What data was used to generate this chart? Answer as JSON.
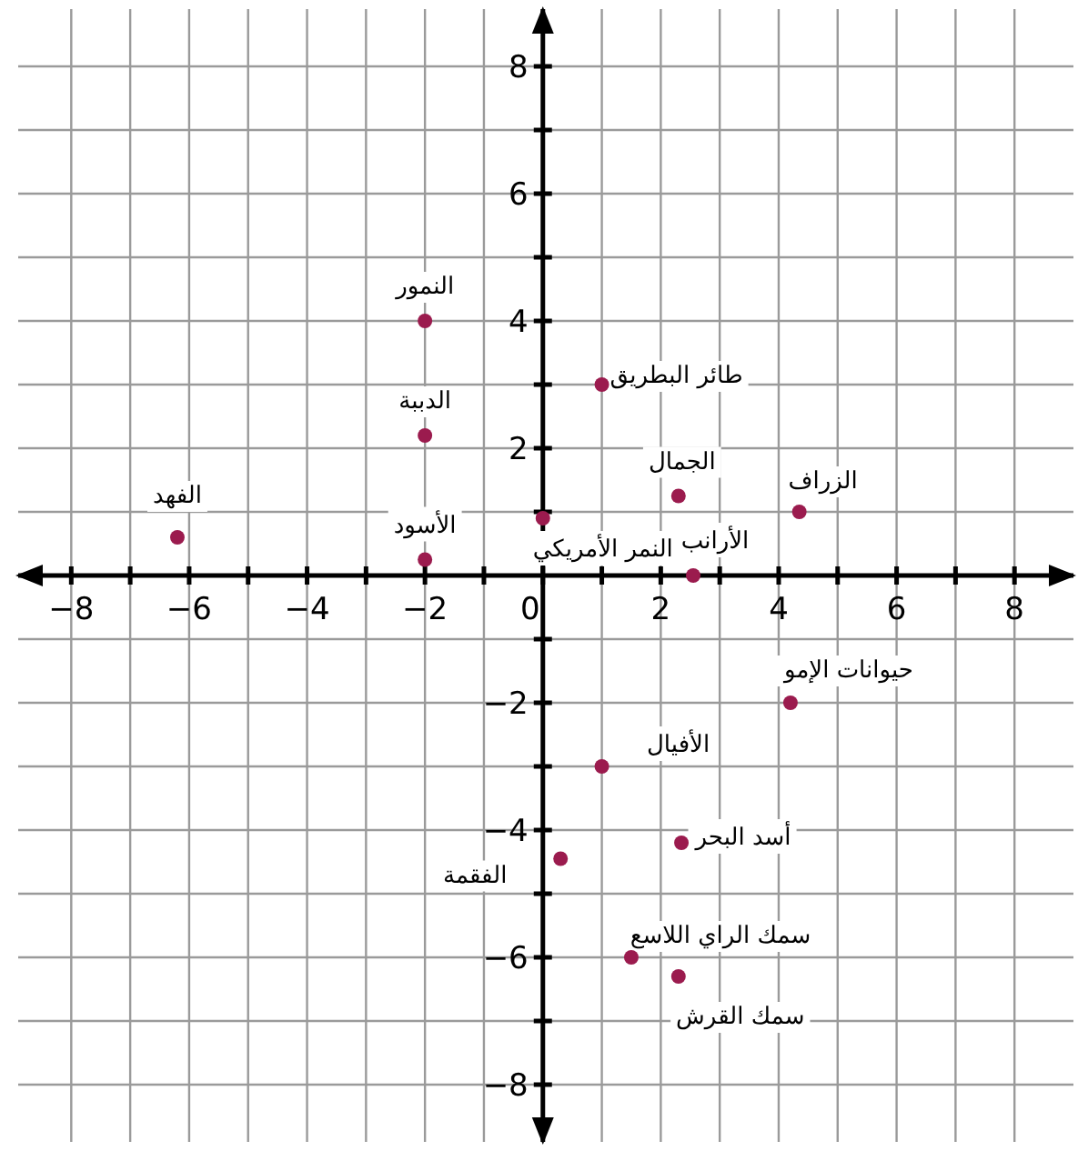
{
  "chart_data": {
    "type": "scatter",
    "x": [
      -6.2,
      -2,
      -2,
      -2,
      0,
      1,
      2.3,
      4.35,
      2.55,
      4.2,
      1,
      2.35,
      0.3,
      1.5,
      2.3
    ],
    "series": [
      {
        "color": "#9b1b4e",
        "values": [
          0.6,
          4,
          2.2,
          0.25,
          0.9,
          3,
          1.25,
          1,
          0,
          -2,
          -3,
          -4.2,
          -4.45,
          -6,
          -6.3
        ]
      }
    ],
    "annotations": [
      {
        "text": "الفهد",
        "x": -6.2,
        "y": 0.6
      },
      {
        "text": "النمور",
        "x": -2,
        "y": 4
      },
      {
        "text": "الدببة",
        "x": -2,
        "y": 2.2
      },
      {
        "text": "الأسود",
        "x": -2,
        "y": 0.25
      },
      {
        "text": "النمر الأمريكي",
        "x": 0,
        "y": 0.9
      },
      {
        "text": "طائر البطريق",
        "x": 1,
        "y": 3
      },
      {
        "text": "الجمال",
        "x": 2.3,
        "y": 1.25
      },
      {
        "text": "الزراف",
        "x": 4.35,
        "y": 1
      },
      {
        "text": "الأرانب",
        "x": 2.55,
        "y": 0
      },
      {
        "text": "حيوانات الإمو",
        "x": 4.2,
        "y": -2
      },
      {
        "text": "الأفيال",
        "x": 1,
        "y": -3
      },
      {
        "text": "أسد البحر",
        "x": 2.35,
        "y": -4.2
      },
      {
        "text": "الفقمة",
        "x": 0.3,
        "y": -4.45
      },
      {
        "text": "سمك الراي اللاسع",
        "x": 1.5,
        "y": -6
      },
      {
        "text": "سمك القرش",
        "x": 2.3,
        "y": -6.3
      }
    ],
    "xlim": [
      -8.9,
      9
    ],
    "ylim": [
      -8.9,
      8.9
    ],
    "xticks": [
      -8,
      {
        "value": -7,
        "label": null
      },
      -6,
      {
        "value": -5,
        "label": null
      },
      -4,
      {
        "value": -3,
        "label": null
      },
      -2,
      {
        "value": -1,
        "label": null
      },
      0,
      {
        "value": 1,
        "label": null
      },
      2,
      {
        "value": 3,
        "label": null
      },
      4,
      {
        "value": 5,
        "label": null
      },
      6,
      {
        "value": 7,
        "label": null
      },
      8
    ],
    "yticks": [
      -8,
      {
        "value": -7,
        "label": null
      },
      -6,
      {
        "value": -5,
        "label": null
      },
      -4,
      {
        "value": -3,
        "label": null
      },
      -2,
      {
        "value": -1,
        "label": null
      },
      {
        "value": 1,
        "label": null
      },
      2,
      {
        "value": 3,
        "label": null
      },
      4,
      {
        "value": 5,
        "label": null
      },
      6,
      {
        "value": 7,
        "label": null
      },
      8
    ],
    "grid": true,
    "marker": "circle"
  }
}
